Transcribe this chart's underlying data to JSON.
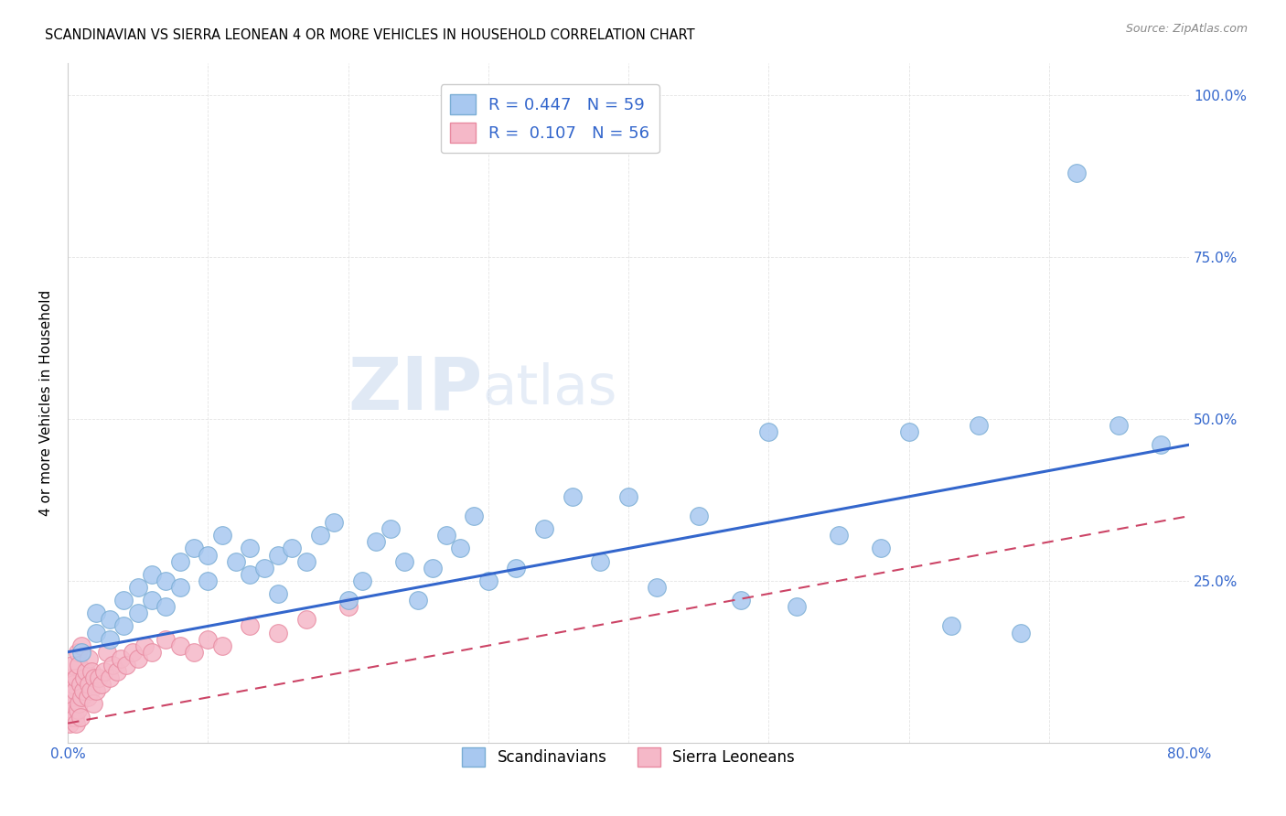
{
  "title": "SCANDINAVIAN VS SIERRA LEONEAN 4 OR MORE VEHICLES IN HOUSEHOLD CORRELATION CHART",
  "source": "Source: ZipAtlas.com",
  "ylabel": "4 or more Vehicles in Household",
  "xlim": [
    0.0,
    0.8
  ],
  "ylim": [
    0.0,
    1.05
  ],
  "x_ticks": [
    0.0,
    0.1,
    0.2,
    0.3,
    0.4,
    0.5,
    0.6,
    0.7,
    0.8
  ],
  "x_tick_labels": [
    "0.0%",
    "",
    "",
    "",
    "",
    "",
    "",
    "",
    "80.0%"
  ],
  "y_ticks": [
    0.0,
    0.25,
    0.5,
    0.75,
    1.0
  ],
  "y_tick_labels": [
    "",
    "25.0%",
    "50.0%",
    "75.0%",
    "100.0%"
  ],
  "legend_label1": "R = 0.447   N = 59",
  "legend_label2": "R =  0.107   N = 56",
  "legend_labels_bottom": [
    "Scandinavians",
    "Sierra Leoneans"
  ],
  "scand_color": "#a8c8f0",
  "scand_edge_color": "#7aadd4",
  "sierra_color": "#f5b8c8",
  "sierra_edge_color": "#e88aa0",
  "trend_scand_color": "#3366cc",
  "trend_sierra_color": "#cc4466",
  "watermark_color": "#d0dff0",
  "scand_x": [
    0.01,
    0.02,
    0.02,
    0.03,
    0.03,
    0.04,
    0.04,
    0.05,
    0.05,
    0.06,
    0.06,
    0.07,
    0.07,
    0.08,
    0.08,
    0.09,
    0.1,
    0.1,
    0.11,
    0.12,
    0.13,
    0.13,
    0.14,
    0.15,
    0.15,
    0.16,
    0.17,
    0.18,
    0.19,
    0.2,
    0.21,
    0.22,
    0.23,
    0.24,
    0.25,
    0.26,
    0.27,
    0.28,
    0.29,
    0.3,
    0.32,
    0.34,
    0.36,
    0.38,
    0.4,
    0.42,
    0.45,
    0.48,
    0.5,
    0.52,
    0.55,
    0.58,
    0.6,
    0.63,
    0.65,
    0.68,
    0.72,
    0.75,
    0.78
  ],
  "scand_y": [
    0.14,
    0.17,
    0.2,
    0.16,
    0.19,
    0.18,
    0.22,
    0.2,
    0.24,
    0.22,
    0.26,
    0.21,
    0.25,
    0.24,
    0.28,
    0.3,
    0.25,
    0.29,
    0.32,
    0.28,
    0.26,
    0.3,
    0.27,
    0.23,
    0.29,
    0.3,
    0.28,
    0.32,
    0.34,
    0.22,
    0.25,
    0.31,
    0.33,
    0.28,
    0.22,
    0.27,
    0.32,
    0.3,
    0.35,
    0.25,
    0.27,
    0.33,
    0.38,
    0.28,
    0.38,
    0.24,
    0.35,
    0.22,
    0.48,
    0.21,
    0.32,
    0.3,
    0.48,
    0.18,
    0.49,
    0.17,
    0.88,
    0.49,
    0.46
  ],
  "sierra_x": [
    0.001,
    0.001,
    0.001,
    0.002,
    0.002,
    0.002,
    0.003,
    0.003,
    0.003,
    0.004,
    0.004,
    0.005,
    0.005,
    0.006,
    0.006,
    0.007,
    0.007,
    0.008,
    0.008,
    0.009,
    0.009,
    0.01,
    0.01,
    0.011,
    0.012,
    0.013,
    0.014,
    0.015,
    0.015,
    0.016,
    0.017,
    0.018,
    0.019,
    0.02,
    0.022,
    0.024,
    0.026,
    0.028,
    0.03,
    0.032,
    0.035,
    0.038,
    0.042,
    0.046,
    0.05,
    0.055,
    0.06,
    0.07,
    0.08,
    0.09,
    0.1,
    0.11,
    0.13,
    0.15,
    0.17,
    0.2
  ],
  "sierra_y": [
    0.03,
    0.05,
    0.08,
    0.04,
    0.06,
    0.1,
    0.04,
    0.07,
    0.12,
    0.05,
    0.09,
    0.04,
    0.08,
    0.03,
    0.1,
    0.05,
    0.14,
    0.06,
    0.12,
    0.04,
    0.09,
    0.07,
    0.15,
    0.08,
    0.1,
    0.11,
    0.07,
    0.09,
    0.13,
    0.08,
    0.11,
    0.06,
    0.1,
    0.08,
    0.1,
    0.09,
    0.11,
    0.14,
    0.1,
    0.12,
    0.11,
    0.13,
    0.12,
    0.14,
    0.13,
    0.15,
    0.14,
    0.16,
    0.15,
    0.14,
    0.16,
    0.15,
    0.18,
    0.17,
    0.19,
    0.21
  ]
}
